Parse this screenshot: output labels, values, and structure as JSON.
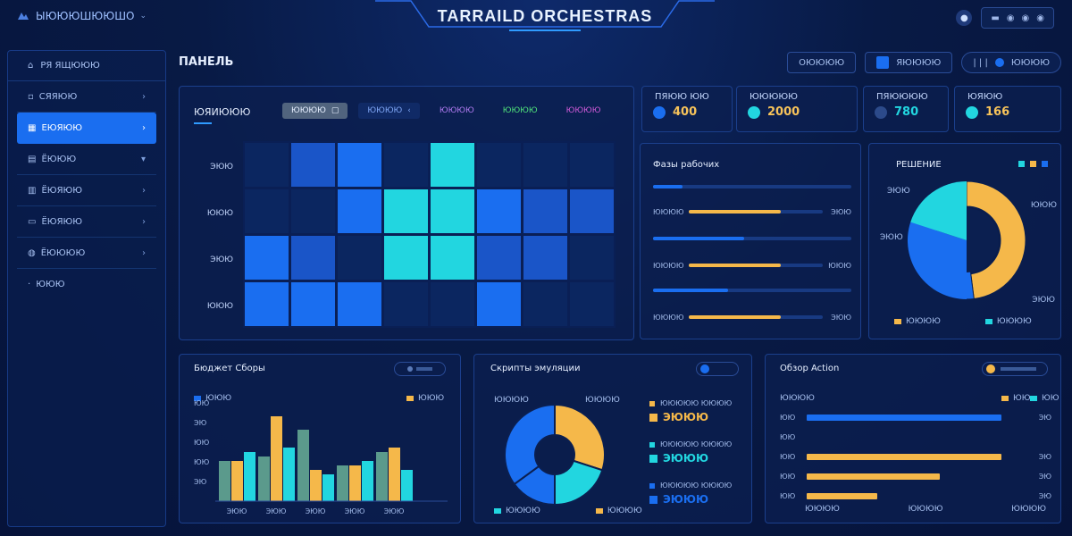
{
  "header": {
    "brand": "ЫЮЮЮШЮЮШО",
    "title": "TARRAILD ORCHESTRAS",
    "right": {
      "icon1": "●",
      "pill_text": "●"
    }
  },
  "sidebar": {
    "head": "РЯ ЯЩЮЮЮ",
    "items": [
      {
        "label": "СЯЯЮЮ",
        "chevron": "›"
      },
      {
        "label": "ЕЮЯЮЮ",
        "chevron": "›"
      },
      {
        "label": "ЁЮЮЮ",
        "chevron": "▾"
      },
      {
        "label": "ЁЮЯЮЮ",
        "chevron": "›"
      },
      {
        "label": "ЁЮЯЮЮ",
        "chevron": "›"
      },
      {
        "label": "ЁЮЮЮЮ",
        "chevron": "›"
      },
      {
        "label": "ЮЮЮ",
        "chevron": ""
      }
    ]
  },
  "page": {
    "title": "ПАНЕЛЬ"
  },
  "controls": {
    "search": "ОЮЮЮЮ",
    "filter": "ЯЮЮЮЮ",
    "range": "| | |",
    "action": "ЮЮЮЮ"
  },
  "heatmap": {
    "title": "ЮЯИЮЮЮ",
    "tabs": [
      "ЮЮЮЮ",
      "ЮЮЮЮ",
      "ЮЮЮЮ",
      "ЮЮЮЮ",
      "ЮЮЮЮ"
    ],
    "rows": [
      "ЭЮЮ",
      "ЮЮЮ",
      "ЭЮЮ",
      "ЮЮЮ"
    ],
    "cells": [
      [
        "#0b2660",
        "#1a55c8",
        "#1a6ef0",
        "#0b2660",
        "#22d6e0",
        "#0b2660",
        "#0b2660",
        "#0b2660"
      ],
      [
        "#0b2660",
        "#0b2660",
        "#1a6ef0",
        "#22d6e0",
        "#22d6e0",
        "#1a6ef0",
        "#1a55c8",
        "#1a55c8"
      ],
      [
        "#1a6ef0",
        "#1a55c8",
        "#0b2660",
        "#22d6e0",
        "#22d6e0",
        "#1a55c8",
        "#1a55c8",
        "#0b2660"
      ],
      [
        "#1a6ef0",
        "#1a6ef0",
        "#1a6ef0",
        "#0b2660",
        "#0b2660",
        "#1a6ef0",
        "#0b2660",
        "#0b2660"
      ]
    ]
  },
  "kpis": [
    {
      "label": "ПЯЮЮ ЮЮ",
      "value": "400",
      "color": "#1a6ef0",
      "text_color": "#f7c35a"
    },
    {
      "label": "ЮЮЮЮЮ",
      "value": "2000",
      "color": "#22d6e0",
      "text_color": "#f7c35a"
    },
    {
      "label": "ПЯЮЮЮЮ",
      "value": "780",
      "color": "#2c4a8a",
      "text_color": "#22d6e0"
    },
    {
      "label": "ЮЯЮЮ",
      "value": "166",
      "color": "#22d6e0",
      "text_color": "#f7c35a"
    }
  ],
  "progress_panel": {
    "title": "Фазы рабочих",
    "rows": [
      {
        "label": "",
        "fill": 0.15,
        "color": "#1a6ef0",
        "right": ""
      },
      {
        "label": "ЮЮЮЮ",
        "fill": 0.48,
        "color": "#f5b84a",
        "right": "ЭЮЮ"
      },
      {
        "label": "",
        "fill": 0.46,
        "color": "#1a6ef0",
        "right": ""
      },
      {
        "label": "ЮЮЮЮ",
        "fill": 0.48,
        "color": "#f5b84a",
        "right": "ЮЮЮ"
      },
      {
        "label": "",
        "fill": 0.38,
        "color": "#1a6ef0",
        "right": ""
      },
      {
        "label": "ЮЮЮЮ",
        "fill": 0.48,
        "color": "#f5b84a",
        "right": "ЭЮЮ"
      }
    ]
  },
  "pie_panel": {
    "title": "РЕШЕНИЕ",
    "labels": [
      "ЭЮЮ",
      "ЭЮЮ",
      "ЮЮЮ",
      "ЭЮЮ"
    ],
    "legend": [
      "ЮЮЮЮ",
      "ЮЮЮЮ"
    ]
  },
  "bar_panel": {
    "title": "Бюджет Сборы",
    "legend": [
      "ЮЮЮ",
      "ЮЮЮ"
    ],
    "y_ticks": [
      "ЮЮ",
      "ЭЮ",
      "ЮЮ",
      "ЮЮ",
      "ЭЮ"
    ],
    "x_ticks": [
      "ЭЮЮ",
      "ЭЮЮ",
      "ЭЮЮ",
      "ЭЮЮ",
      "ЭЮЮ"
    ]
  },
  "donut_panel": {
    "title": "Скрипты эмуляции",
    "left_label": "ЮЮЮЮ",
    "right_label": "ЮЮЮЮ",
    "items": [
      {
        "label": "ЮЮЮЮЮ ЮЮЮЮ",
        "value": "ЭЮЮЮ",
        "color": "#f5b84a"
      },
      {
        "label": "ЮЮЮЮЮ ЮЮЮЮ",
        "value": "ЭЮЮЮ",
        "color": "#22d6e0"
      },
      {
        "label": "ЮЮЮЮЮ ЮЮЮЮ",
        "value": "ЭЮЮЮ",
        "color": "#1a6ef0"
      }
    ],
    "legend": [
      "ЮЮЮЮ",
      "ЮЮЮЮ"
    ]
  },
  "hbar_panel": {
    "title": "Обзор Action",
    "top_labels": [
      "ЮЮЮЮ",
      "ЮЮ",
      "ЮЮ"
    ],
    "rows": [
      {
        "label": "ЮЮ",
        "fill": 0.88,
        "color": "#1a6ef0",
        "right": "ЭЮ"
      },
      {
        "label": "ЮЮ",
        "fill": 0.0,
        "color": "#1a6ef0",
        "right": ""
      },
      {
        "label": "ЮЮ",
        "fill": 0.88,
        "color": "#f5b84a",
        "right": "ЭЮ"
      },
      {
        "label": "ЮЮ",
        "fill": 0.6,
        "color": "#f5b84a",
        "right": "ЭЮ"
      },
      {
        "label": "ЮЮ",
        "fill": 0.32,
        "color": "#f5b84a",
        "right": "ЭЮ"
      }
    ],
    "x_ticks": [
      "ЮЮЮЮ",
      "ЮЮЮЮ",
      "ЮЮЮЮ"
    ]
  },
  "chart_data": [
    {
      "type": "heatmap",
      "rows": [
        "ЭЮЮ",
        "ЮЮЮ",
        "ЭЮЮ",
        "ЮЮЮ"
      ],
      "cols": 8
    },
    {
      "type": "pie",
      "slices": [
        {
          "name": "",
          "value": 48,
          "color": "#f5b84a"
        },
        {
          "name": "",
          "value": 36,
          "color": "#1a6ef0"
        },
        {
          "name": "",
          "value": 16,
          "color": "#22d6e0"
        }
      ]
    },
    {
      "type": "bar",
      "categories": [
        "ЭЮЮ",
        "ЭЮЮ",
        "ЭЮЮ",
        "ЭЮЮ",
        "ЭЮЮ"
      ],
      "ylim": [
        0,
        100
      ],
      "series": [
        {
          "name": "",
          "values": [
            45,
            50,
            80,
            40,
            55
          ],
          "color": "#5b9a8c"
        },
        {
          "name": "",
          "values": [
            45,
            95,
            35,
            40,
            60
          ],
          "color": "#f5b84a"
        },
        {
          "name": "",
          "values": [
            55,
            60,
            30,
            45,
            35
          ],
          "color": "#22d6e0"
        }
      ]
    },
    {
      "type": "pie",
      "slices": [
        {
          "name": "",
          "value": 30,
          "color": "#f5b84a"
        },
        {
          "name": "",
          "value": 20,
          "color": "#22d6e0"
        },
        {
          "name": "",
          "value": 15,
          "color": "#1a6ef0"
        },
        {
          "name": "",
          "value": 35,
          "color": "#1a6ef0"
        }
      ]
    }
  ]
}
